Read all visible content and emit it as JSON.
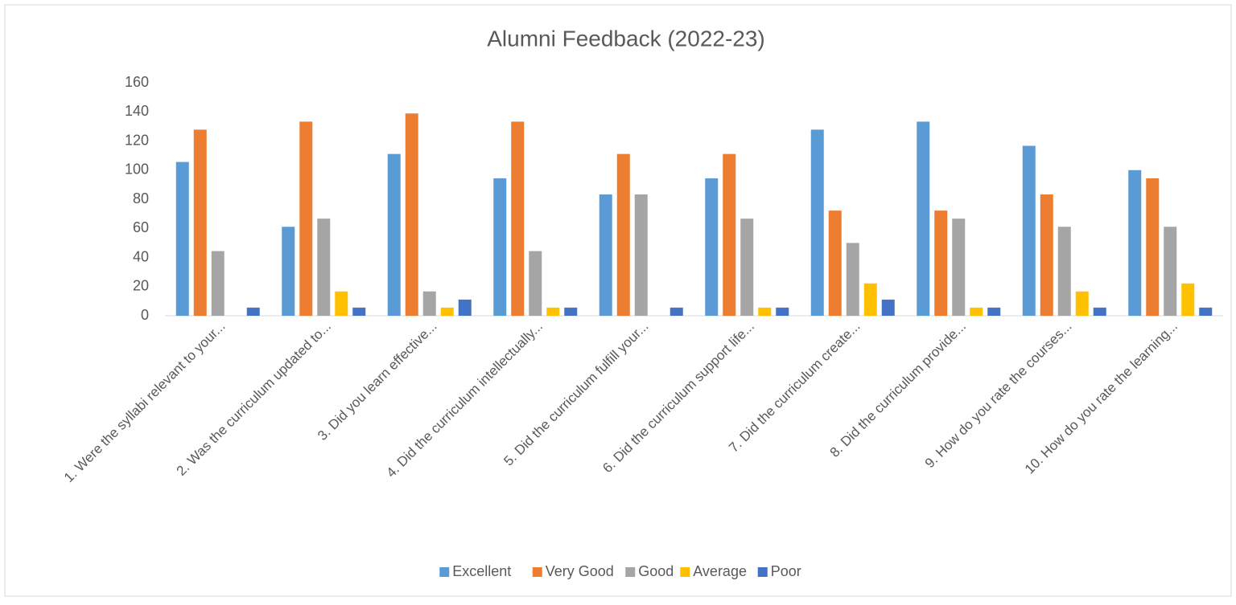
{
  "chart_data": {
    "type": "bar",
    "title": "Alumni Feedback (2022-23)",
    "categories": [
      "1. Were the syllabi relevant to your...",
      "2. Was the curriculum updated to...",
      "3. Did you learn effective...",
      "4. Did the curriculum intellectually...",
      "5. Did the curriculum fulfill your...",
      "6. Did the curriculum support life...",
      "7. Did the curriculum  create...",
      "8. Did the curriculum provide...",
      "9. How do you rate the courses...",
      "10. How do you rate the learning..."
    ],
    "series": [
      {
        "name": "Excellent",
        "color": "#5b9bd5",
        "values": [
          105.6,
          61.1,
          111.1,
          94.4,
          83.3,
          94.4,
          127.8,
          133.3,
          116.7,
          100
        ]
      },
      {
        "name": "Very Good",
        "color": "#ed7d31",
        "values": [
          127.8,
          133.3,
          138.9,
          133.3,
          111.1,
          111.1,
          72.2,
          72.2,
          83.3,
          94.4
        ]
      },
      {
        "name": "Good",
        "color": "#a5a5a5",
        "values": [
          44.4,
          66.7,
          16.7,
          44.4,
          83.3,
          66.7,
          50,
          66.7,
          61.1,
          61.1
        ]
      },
      {
        "name": "Average",
        "color": "#ffc000",
        "values": [
          0,
          16.7,
          5.6,
          5.6,
          0,
          5.6,
          22.2,
          5.6,
          16.7,
          22.2
        ]
      },
      {
        "name": "Poor",
        "color": "#4472c4",
        "values": [
          5.6,
          5.6,
          11.1,
          5.6,
          5.6,
          5.6,
          11.1,
          5.6,
          5.6,
          5.6
        ]
      }
    ],
    "ylim": [
      0,
      160
    ],
    "yticks": [
      0,
      20,
      40,
      60,
      80,
      100,
      120,
      140,
      160
    ],
    "grid": false,
    "legend": "bottom"
  }
}
